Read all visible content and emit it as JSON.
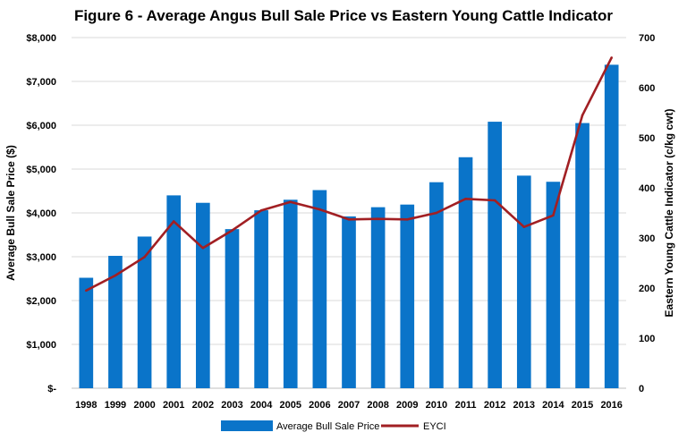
{
  "chart_data": {
    "type": "bar",
    "title": "Figure 6 - Average Angus Bull Sale Price vs Eastern Young Cattle Indicator",
    "categories": [
      "1998",
      "1999",
      "2000",
      "2001",
      "2002",
      "2003",
      "2004",
      "2005",
      "2006",
      "2007",
      "2008",
      "2009",
      "2010",
      "2011",
      "2012",
      "2013",
      "2014",
      "2015",
      "2016"
    ],
    "series": [
      {
        "name": "Average Bull Sale Price",
        "type": "bar",
        "axis": "left",
        "color": "#0a74c9",
        "values": [
          2520,
          3020,
          3460,
          4400,
          4230,
          3630,
          4060,
          4300,
          4520,
          3920,
          4130,
          4190,
          4700,
          5270,
          6080,
          4850,
          4710,
          6050,
          7380
        ]
      },
      {
        "name": "EYCI",
        "type": "line",
        "axis": "right",
        "color": "#a11f23",
        "values": [
          195,
          225,
          262,
          333,
          280,
          315,
          355,
          372,
          357,
          337,
          338,
          337,
          350,
          378,
          375,
          322,
          345,
          545,
          660
        ]
      }
    ],
    "ylabel": "Average Bull Sale Price ($)",
    "y2label": "Eastern Young Cattle Indicator (c/kg cwt)",
    "ylim": [
      0,
      8000
    ],
    "y2lim": [
      0,
      700
    ],
    "yticks": [
      "$-",
      "$1,000",
      "$2,000",
      "$3,000",
      "$4,000",
      "$5,000",
      "$6,000",
      "$7,000",
      "$8,000"
    ],
    "y2ticks": [
      "0",
      "100",
      "200",
      "300",
      "400",
      "500",
      "600",
      "700"
    ],
    "grid": true,
    "legend": "bottom"
  }
}
